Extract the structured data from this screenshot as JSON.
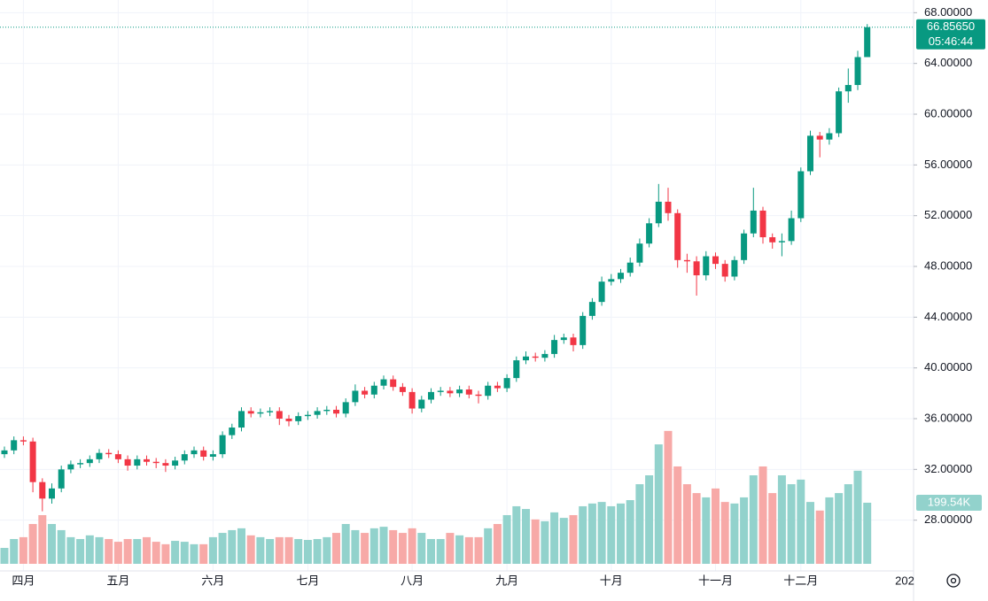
{
  "chart_data": {
    "type": "candlestick",
    "categories": [
      null,
      null,
      "四月",
      null,
      null,
      null,
      null,
      null,
      null,
      null,
      null,
      null,
      "五月",
      null,
      null,
      null,
      null,
      null,
      null,
      null,
      null,
      null,
      "六月",
      null,
      null,
      null,
      null,
      null,
      null,
      null,
      null,
      null,
      "七月",
      null,
      null,
      null,
      null,
      null,
      null,
      null,
      null,
      null,
      null,
      "八月",
      null,
      null,
      null,
      null,
      null,
      null,
      null,
      null,
      null,
      "九月",
      null,
      null,
      null,
      null,
      null,
      null,
      null,
      null,
      null,
      null,
      "十月",
      null,
      null,
      null,
      null,
      null,
      null,
      null,
      null,
      null,
      null,
      "十一月",
      null,
      null,
      null,
      null,
      null,
      null,
      null,
      null,
      "十二月",
      null,
      null,
      null,
      null,
      null,
      null,
      null
    ],
    "next_period_label": "202",
    "open": [
      33.2,
      33.5,
      34.3,
      34.2,
      31.0,
      29.7,
      30.5,
      32.0,
      32.4,
      32.5,
      32.8,
      33.3,
      33.2,
      32.8,
      32.3,
      32.8,
      32.6,
      32.5,
      32.3,
      32.7,
      33.2,
      33.5,
      33.0,
      33.2,
      34.7,
      35.3,
      36.6,
      36.4,
      36.5,
      36.6,
      36.0,
      35.8,
      36.2,
      36.3,
      36.6,
      36.7,
      36.4,
      37.3,
      38.2,
      37.9,
      38.6,
      39.1,
      38.5,
      38.1,
      36.8,
      37.5,
      38.1,
      38.2,
      38.0,
      38.3,
      37.9,
      37.8,
      38.6,
      38.4,
      39.2,
      40.6,
      40.9,
      40.8,
      41.1,
      42.2,
      42.4,
      41.8,
      44.1,
      45.2,
      46.8,
      47.0,
      47.5,
      48.3,
      49.8,
      51.4,
      53.1,
      52.2,
      48.5,
      48.4,
      47.3,
      48.8,
      48.2,
      47.2,
      48.5,
      50.6,
      52.4,
      50.3,
      49.9,
      50.0,
      51.8,
      55.5,
      58.3,
      58.0,
      58.5,
      61.8,
      62.3,
      64.5
    ],
    "high": [
      33.8,
      34.6,
      34.6,
      34.5,
      31.3,
      30.9,
      32.3,
      32.7,
      32.8,
      33.1,
      33.6,
      33.6,
      33.5,
      33.1,
      33.1,
      33.1,
      32.9,
      32.8,
      33.0,
      33.5,
      33.8,
      33.8,
      33.5,
      35.0,
      35.6,
      36.9,
      36.9,
      36.8,
      36.9,
      36.9,
      36.3,
      36.5,
      36.6,
      36.9,
      37.0,
      37.0,
      37.6,
      38.7,
      38.5,
      38.9,
      39.4,
      39.4,
      38.8,
      38.4,
      37.8,
      38.4,
      38.5,
      38.5,
      38.6,
      38.6,
      38.2,
      38.9,
      38.9,
      39.5,
      40.9,
      41.3,
      41.2,
      41.4,
      42.6,
      42.7,
      42.7,
      44.4,
      45.5,
      47.2,
      47.4,
      47.8,
      48.7,
      50.2,
      51.8,
      54.5,
      54.2,
      52.5,
      49.0,
      48.8,
      49.2,
      49.1,
      48.5,
      48.8,
      50.9,
      54.2,
      52.7,
      50.6,
      50.6,
      52.4,
      55.8,
      58.7,
      58.6,
      58.9,
      62.1,
      63.6,
      65.0,
      67.1
    ],
    "low": [
      32.9,
      33.2,
      33.9,
      30.2,
      28.7,
      29.3,
      30.2,
      31.7,
      32.1,
      32.2,
      32.5,
      32.9,
      32.5,
      31.9,
      32.0,
      32.3,
      32.1,
      31.8,
      32.0,
      32.4,
      32.9,
      32.7,
      32.7,
      32.9,
      34.4,
      35.0,
      36.1,
      36.1,
      36.2,
      35.5,
      35.4,
      35.5,
      35.9,
      36.0,
      36.3,
      36.1,
      36.1,
      37.0,
      37.6,
      37.6,
      38.3,
      38.2,
      37.8,
      36.4,
      36.5,
      37.2,
      37.8,
      37.7,
      37.7,
      37.6,
      37.2,
      37.5,
      38.1,
      38.1,
      38.9,
      40.3,
      40.5,
      40.5,
      40.8,
      41.9,
      41.3,
      41.5,
      43.8,
      44.9,
      46.5,
      46.7,
      47.2,
      48.0,
      49.5,
      51.1,
      51.6,
      47.9,
      47.5,
      45.7,
      46.9,
      47.8,
      46.8,
      46.9,
      48.2,
      50.3,
      49.8,
      49.4,
      48.8,
      49.7,
      51.5,
      55.2,
      56.6,
      57.6,
      58.2,
      60.9,
      61.9,
      64.5
    ],
    "close": [
      33.5,
      34.3,
      34.2,
      31.0,
      29.7,
      30.5,
      32.0,
      32.4,
      32.5,
      32.8,
      33.3,
      33.2,
      32.8,
      32.3,
      32.8,
      32.6,
      32.5,
      32.3,
      32.7,
      33.2,
      33.5,
      33.0,
      33.2,
      34.7,
      35.3,
      36.6,
      36.4,
      36.5,
      36.6,
      36.0,
      35.8,
      36.2,
      36.3,
      36.6,
      36.7,
      36.4,
      37.3,
      38.2,
      37.9,
      38.6,
      39.1,
      38.5,
      38.1,
      36.8,
      37.5,
      38.1,
      38.2,
      38.0,
      38.3,
      37.9,
      37.8,
      38.6,
      38.4,
      39.2,
      40.6,
      40.9,
      40.8,
      41.1,
      42.2,
      42.4,
      41.8,
      44.1,
      45.2,
      46.8,
      47.0,
      47.5,
      48.3,
      49.8,
      51.4,
      53.1,
      52.2,
      48.5,
      48.4,
      47.3,
      48.8,
      48.2,
      47.2,
      48.5,
      50.6,
      52.4,
      50.3,
      49.9,
      50.0,
      51.8,
      55.5,
      58.3,
      58.0,
      58.5,
      61.8,
      62.3,
      64.5,
      66.8565
    ],
    "volume": [
      52000,
      81000,
      87000,
      130000,
      159000,
      130000,
      110000,
      87000,
      81000,
      93000,
      87000,
      81000,
      72000,
      81000,
      81000,
      87000,
      72000,
      64000,
      75000,
      72000,
      64000,
      64000,
      87000,
      101000,
      110000,
      116000,
      93000,
      87000,
      81000,
      87000,
      87000,
      81000,
      78000,
      81000,
      87000,
      101000,
      130000,
      110000,
      101000,
      116000,
      121000,
      110000,
      101000,
      116000,
      101000,
      81000,
      81000,
      101000,
      93000,
      87000,
      87000,
      116000,
      130000,
      159000,
      188000,
      179000,
      145000,
      139000,
      168000,
      150000,
      159000,
      188000,
      197000,
      202000,
      188000,
      197000,
      208000,
      260000,
      289000,
      390000,
      434000,
      318000,
      260000,
      231000,
      217000,
      246000,
      202000,
      197000,
      217000,
      289000,
      318000,
      231000,
      289000,
      260000,
      275000,
      202000,
      174000,
      217000,
      231000,
      260000,
      304000,
      199540
    ],
    "last_price_label": "66.85650",
    "countdown": "05:46:44",
    "last_volume_label": "199.54K",
    "up_color": "#089981",
    "down_color": "#f23645",
    "volume_up_color": "#92d2cc",
    "volume_down_color": "#f7a9a7",
    "ylim": [
      24,
      69
    ],
    "volume_ylim": [
      0,
      500000
    ],
    "yticks": [
      {
        "value": 28,
        "label": "28.00000"
      },
      {
        "value": 32,
        "label": "32.00000"
      },
      {
        "value": 36,
        "label": "36.00000"
      },
      {
        "value": 40,
        "label": "40.00000"
      },
      {
        "value": 44,
        "label": "44.00000"
      },
      {
        "value": 48,
        "label": "48.00000"
      },
      {
        "value": 52,
        "label": "52.00000"
      },
      {
        "value": 56,
        "label": "56.00000"
      },
      {
        "value": 60,
        "label": "60.00000"
      },
      {
        "value": 64,
        "label": "64.00000"
      },
      {
        "value": 68,
        "label": "68.00000"
      }
    ],
    "grid": true
  }
}
